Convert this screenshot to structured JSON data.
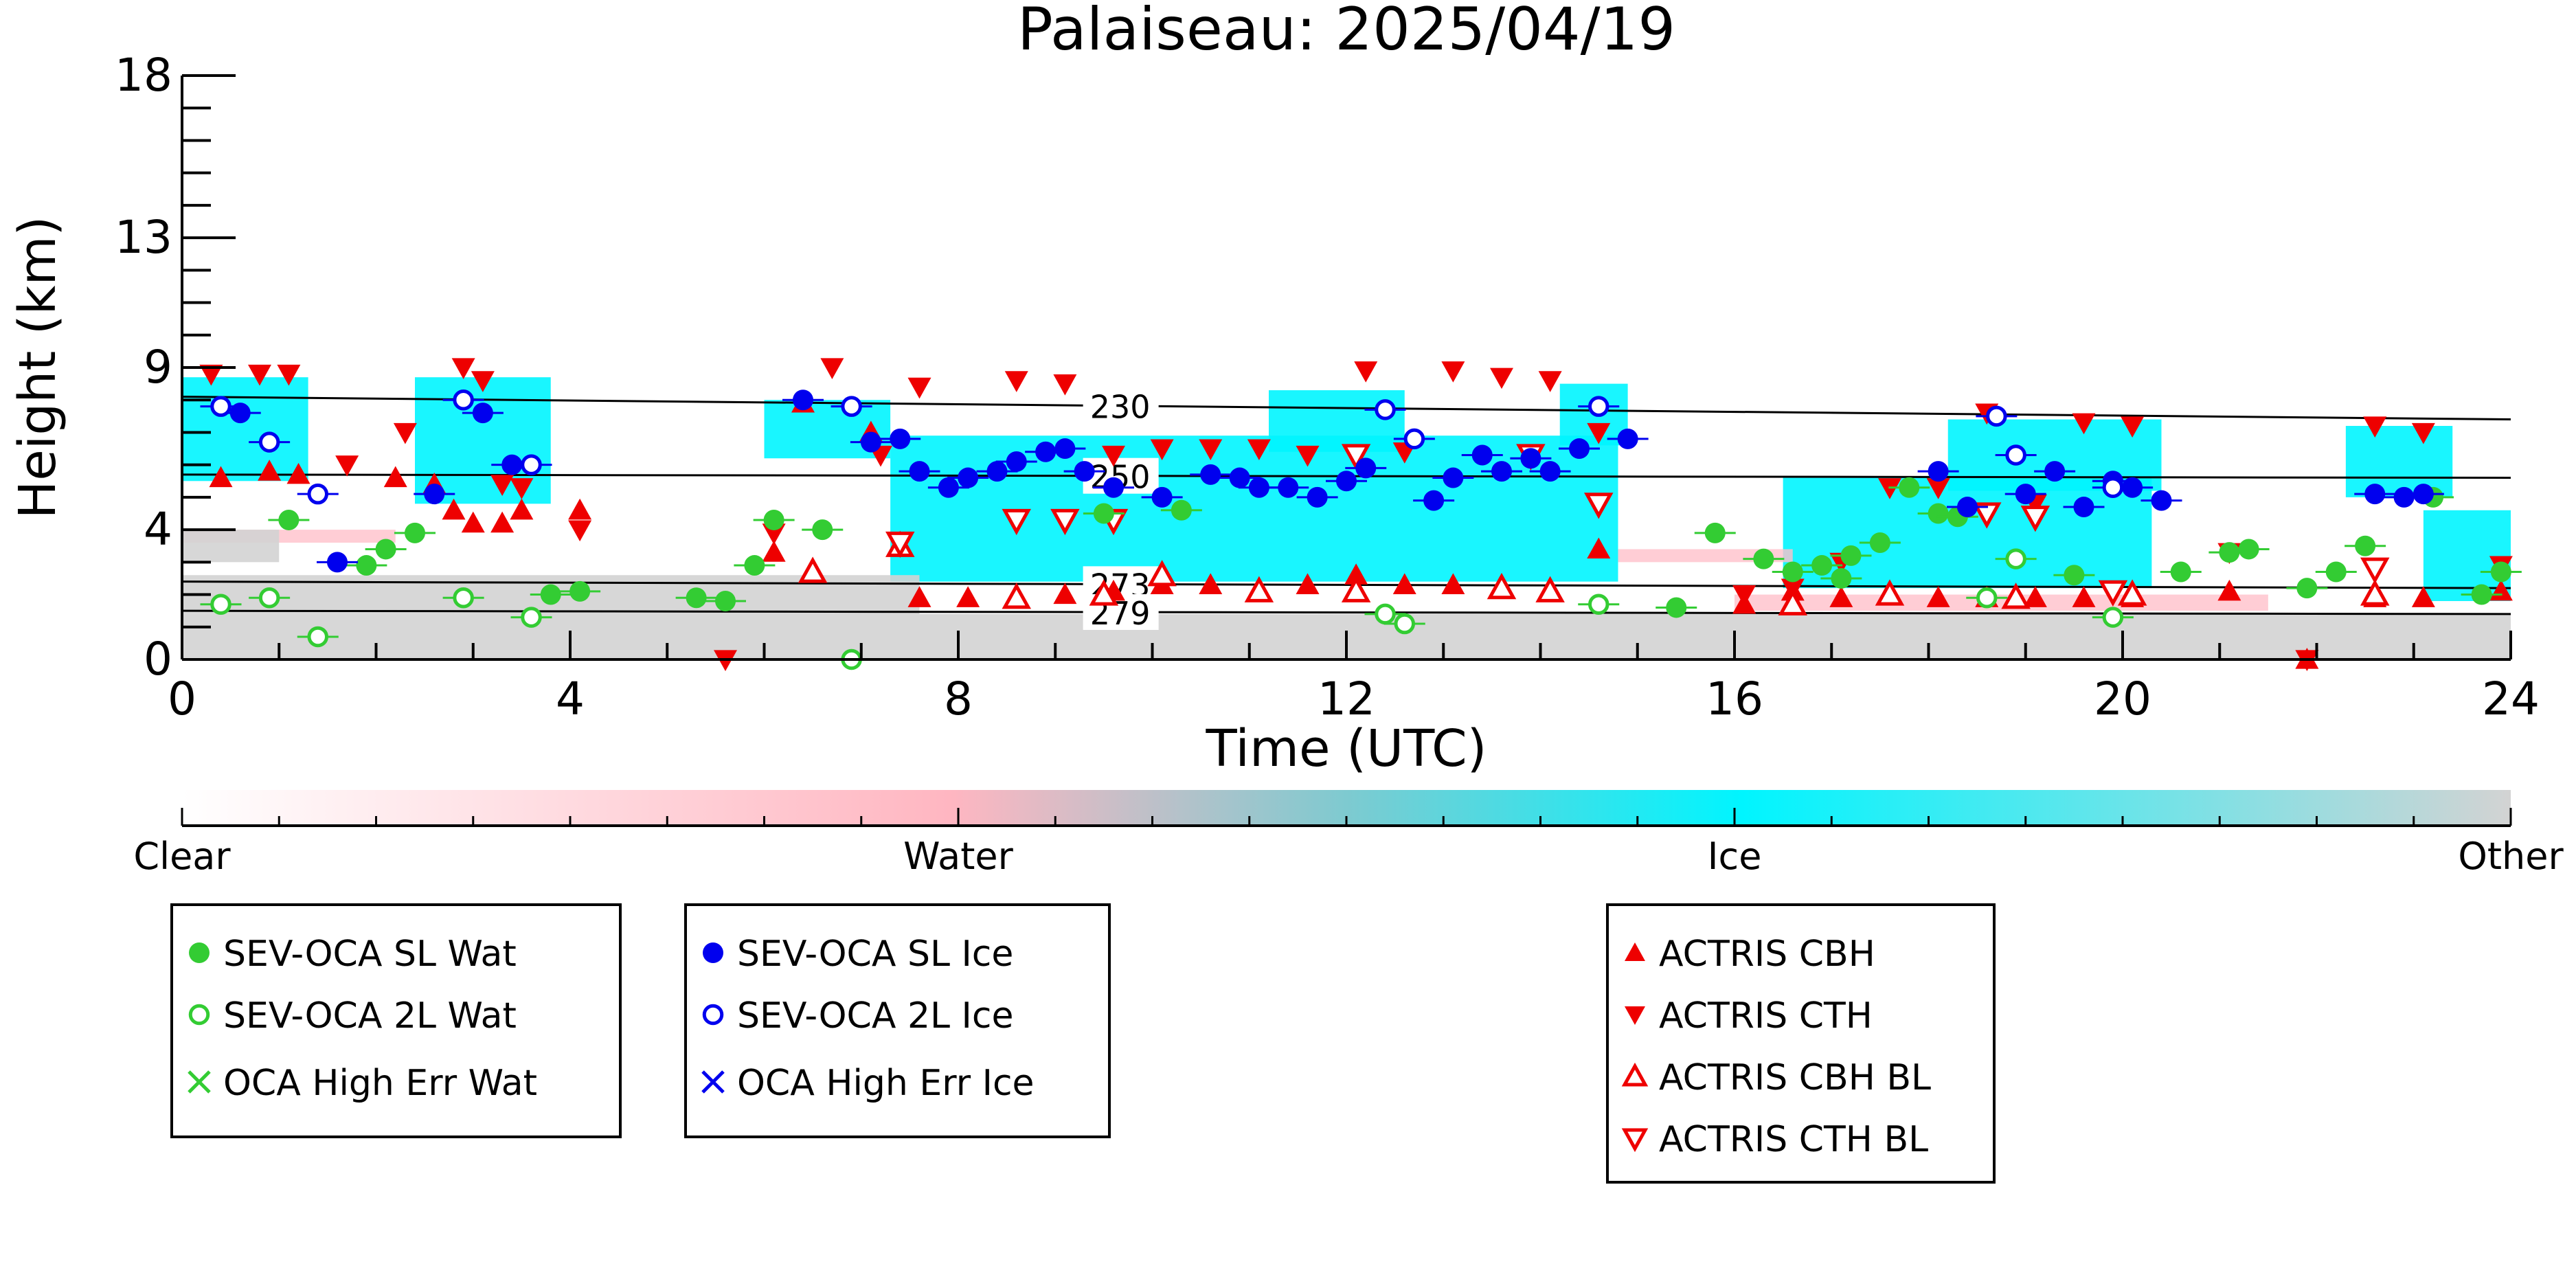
{
  "chart_data": {
    "type": "scatter",
    "title": "Palaiseau: 2025/04/19",
    "xlabel": "Time (UTC)",
    "ylabel": "Height (km)",
    "xlim": [
      0,
      24
    ],
    "ylim": [
      0,
      18
    ],
    "x_ticks": [
      0,
      4,
      8,
      12,
      16,
      20,
      24
    ],
    "y_ticks": [
      0,
      4,
      9,
      13,
      18
    ],
    "grid": false,
    "colorbar": {
      "labels": [
        "Clear",
        "Water",
        "Ice",
        "Other"
      ],
      "colors": [
        "#ffffff",
        "#ffb6c1",
        "#00f5ff",
        "#d3d3d3"
      ]
    },
    "isotherms": [
      {
        "label": "230",
        "x": [
          0,
          24
        ],
        "y": [
          8.1,
          7.4
        ]
      },
      {
        "label": "250",
        "x": [
          0,
          24
        ],
        "y": [
          5.7,
          5.6
        ]
      },
      {
        "label": "273",
        "x": [
          0,
          24
        ],
        "y": [
          2.4,
          2.2
        ]
      },
      {
        "label": "279",
        "x": [
          0,
          24
        ],
        "y": [
          1.5,
          1.4
        ]
      }
    ],
    "series": [
      {
        "name": "SEV-OCA SL Wat",
        "color": "#33cc33",
        "marker": "circle-filled",
        "x": [
          1.1,
          1.9,
          2.1,
          2.4,
          3.8,
          4.1,
          5.3,
          5.6,
          5.9,
          6.1,
          6.6,
          9.5,
          10.3,
          15.4,
          15.8,
          16.3,
          16.6,
          16.9,
          17.1,
          17.2,
          17.5,
          17.8,
          18.1,
          18.3,
          19.5,
          20.6,
          21.1,
          21.3,
          21.9,
          22.2,
          22.5,
          23.2,
          23.7,
          23.9
        ],
        "y": [
          4.3,
          2.9,
          3.4,
          3.9,
          2.0,
          2.1,
          1.9,
          1.8,
          2.9,
          4.3,
          4.0,
          4.5,
          4.6,
          1.6,
          3.9,
          3.1,
          2.7,
          2.9,
          2.5,
          3.2,
          3.6,
          5.3,
          4.5,
          4.4,
          2.6,
          2.7,
          3.3,
          3.4,
          2.2,
          2.7,
          3.5,
          5.0,
          2.0,
          2.7
        ]
      },
      {
        "name": "SEV-OCA 2L Wat",
        "color": "#33cc33",
        "marker": "circle-open",
        "x": [
          0.4,
          0.9,
          1.4,
          2.9,
          3.6,
          6.9,
          12.4,
          12.6,
          14.6,
          18.6,
          18.9,
          19.9
        ],
        "y": [
          1.7,
          1.9,
          0.7,
          1.9,
          1.3,
          0.0,
          1.4,
          1.1,
          1.7,
          1.9,
          3.1,
          1.3
        ]
      },
      {
        "name": "OCA High Err Wat",
        "color": "#33cc33",
        "marker": "x",
        "x": [],
        "y": []
      },
      {
        "name": "SEV-OCA SL Ice",
        "color": "#0000ee",
        "marker": "circle-filled",
        "x": [
          0.6,
          1.6,
          2.6,
          3.1,
          3.4,
          6.4,
          7.1,
          7.4,
          7.6,
          7.9,
          8.1,
          8.4,
          8.6,
          8.9,
          9.1,
          9.3,
          9.6,
          10.1,
          10.6,
          10.9,
          11.1,
          11.4,
          11.7,
          12.0,
          12.2,
          12.9,
          13.1,
          13.4,
          13.6,
          13.9,
          14.1,
          14.4,
          14.9,
          18.1,
          18.4,
          19.0,
          19.3,
          19.6,
          19.9,
          20.1,
          20.4,
          22.6,
          22.9,
          23.1
        ],
        "y": [
          7.6,
          3.0,
          5.1,
          7.6,
          6.0,
          8.0,
          6.7,
          6.8,
          5.8,
          5.3,
          5.6,
          5.8,
          6.1,
          6.4,
          6.5,
          5.8,
          5.3,
          5.0,
          5.7,
          5.6,
          5.3,
          5.3,
          5.0,
          5.5,
          5.9,
          4.9,
          5.6,
          6.3,
          5.8,
          6.2,
          5.8,
          6.5,
          6.8,
          5.8,
          4.7,
          5.1,
          5.8,
          4.7,
          5.5,
          5.3,
          4.9,
          5.1,
          5.0,
          5.1
        ]
      },
      {
        "name": "SEV-OCA 2L Ice",
        "color": "#0000ee",
        "marker": "circle-open",
        "x": [
          0.4,
          0.9,
          1.4,
          2.9,
          3.6,
          6.9,
          12.4,
          12.7,
          14.6,
          18.7,
          18.9,
          19.9
        ],
        "y": [
          7.8,
          6.7,
          5.1,
          8.0,
          6.0,
          7.8,
          7.7,
          6.8,
          7.8,
          7.5,
          6.3,
          5.3
        ]
      },
      {
        "name": "OCA High Err Ice",
        "color": "#0000ee",
        "marker": "x",
        "x": [],
        "y": []
      },
      {
        "name": "ACTRIS CBH",
        "color": "#ee0000",
        "marker": "triangle-up-filled",
        "x": [
          0.4,
          0.9,
          1.2,
          2.2,
          2.6,
          2.8,
          3.0,
          3.3,
          3.5,
          4.1,
          6.1,
          6.4,
          7.1,
          7.6,
          8.1,
          8.6,
          9.1,
          9.6,
          10.1,
          10.6,
          11.1,
          11.6,
          12.1,
          12.6,
          13.1,
          13.6,
          14.1,
          14.6,
          16.1,
          16.6,
          17.1,
          17.6,
          18.1,
          18.6,
          19.1,
          19.6,
          20.1,
          21.1,
          21.9,
          22.6,
          23.1,
          23.9
        ],
        "y": [
          5.6,
          5.8,
          5.7,
          5.6,
          5.4,
          4.6,
          4.2,
          4.2,
          4.6,
          4.6,
          3.3,
          7.9,
          7.0,
          1.9,
          1.9,
          1.9,
          2.0,
          2.1,
          2.3,
          2.3,
          2.1,
          2.3,
          2.6,
          2.3,
          2.3,
          2.3,
          2.1,
          3.4,
          1.7,
          2.1,
          1.9,
          2.1,
          1.9,
          1.9,
          1.9,
          1.9,
          1.9,
          2.1,
          0.0,
          1.9,
          1.9,
          2.1
        ]
      },
      {
        "name": "ACTRIS CTH",
        "color": "#ee0000",
        "marker": "triangle-down-filled",
        "x": [
          0.3,
          0.8,
          1.1,
          1.7,
          2.3,
          2.9,
          3.1,
          3.3,
          3.5,
          4.1,
          5.6,
          6.1,
          6.7,
          7.2,
          7.6,
          8.6,
          9.1,
          9.6,
          10.1,
          10.6,
          11.1,
          11.6,
          12.2,
          12.6,
          13.1,
          13.6,
          14.1,
          14.6,
          16.1,
          16.6,
          17.1,
          17.6,
          18.1,
          18.6,
          19.1,
          19.6,
          20.1,
          21.1,
          21.9,
          22.6,
          23.1,
          23.9
        ],
        "y": [
          8.8,
          8.8,
          8.8,
          6.0,
          7.0,
          9.0,
          8.6,
          5.4,
          5.3,
          4.0,
          0.0,
          3.9,
          9.0,
          6.3,
          8.4,
          8.6,
          8.5,
          6.3,
          6.5,
          6.5,
          6.5,
          6.3,
          8.9,
          6.4,
          8.9,
          8.7,
          8.6,
          7.0,
          2.0,
          2.2,
          3.0,
          5.3,
          5.3,
          7.6,
          4.8,
          7.3,
          7.2,
          3.3,
          0.0,
          7.2,
          7.0,
          2.9
        ]
      },
      {
        "name": "ACTRIS CBH BL",
        "color": "#ee0000",
        "marker": "triangle-up-open",
        "x": [
          6.5,
          7.4,
          8.6,
          9.5,
          10.1,
          11.1,
          12.1,
          13.6,
          14.1,
          16.6,
          17.6,
          18.9,
          20.1,
          22.6
        ],
        "y": [
          2.7,
          3.5,
          1.9,
          2.0,
          2.6,
          2.1,
          2.1,
          2.2,
          2.1,
          1.7,
          2.0,
          1.9,
          2.0,
          2.0
        ]
      },
      {
        "name": "ACTRIS CTH BL",
        "color": "#ee0000",
        "marker": "triangle-down-open",
        "x": [
          7.4,
          8.6,
          9.1,
          9.6,
          12.1,
          13.9,
          14.6,
          18.6,
          19.1,
          19.9,
          22.6
        ],
        "y": [
          3.6,
          4.3,
          4.3,
          4.3,
          6.3,
          6.3,
          4.8,
          4.5,
          4.4,
          2.1,
          2.8
        ]
      }
    ],
    "layers": [
      {
        "class": "Ice",
        "x": [
          0,
          1.3
        ],
        "y": [
          5.5,
          8.7
        ]
      },
      {
        "class": "Ice",
        "x": [
          2.4,
          3.8
        ],
        "y": [
          4.8,
          8.7
        ]
      },
      {
        "class": "Ice",
        "x": [
          6.0,
          7.3
        ],
        "y": [
          6.2,
          8.0
        ]
      },
      {
        "class": "Ice",
        "x": [
          7.3,
          14.8
        ],
        "y": [
          2.4,
          6.9
        ]
      },
      {
        "class": "Ice",
        "x": [
          11.2,
          12.6
        ],
        "y": [
          6.4,
          8.3
        ]
      },
      {
        "class": "Ice",
        "x": [
          14.2,
          14.9
        ],
        "y": [
          6.6,
          8.5
        ]
      },
      {
        "class": "Ice",
        "x": [
          16.5,
          20.3
        ],
        "y": [
          2.2,
          5.6
        ]
      },
      {
        "class": "Ice",
        "x": [
          18.2,
          20.4
        ],
        "y": [
          5.2,
          7.4
        ]
      },
      {
        "class": "Ice",
        "x": [
          22.3,
          23.4
        ],
        "y": [
          5.0,
          7.2
        ]
      },
      {
        "class": "Ice",
        "x": [
          23.1,
          24.0
        ],
        "y": [
          1.8,
          4.6
        ]
      },
      {
        "class": "Water",
        "x": [
          0,
          2.2
        ],
        "y": [
          3.6,
          4.0
        ]
      },
      {
        "class": "Water",
        "x": [
          14.8,
          16.6
        ],
        "y": [
          3.0,
          3.4
        ]
      },
      {
        "class": "Water",
        "x": [
          16.0,
          21.5
        ],
        "y": [
          1.5,
          2.0
        ]
      },
      {
        "class": "Other",
        "x": [
          0,
          24
        ],
        "y": [
          0,
          1.4
        ]
      },
      {
        "class": "Other",
        "x": [
          0,
          7.6
        ],
        "y": [
          1.4,
          2.6
        ]
      },
      {
        "class": "Other",
        "x": [
          0,
          1.0
        ],
        "y": [
          3.0,
          4.0
        ]
      }
    ]
  },
  "legends": [
    {
      "entries": [
        {
          "label": "SEV-OCA SL Wat",
          "color": "#33cc33",
          "marker": "circle-filled"
        },
        {
          "label": "SEV-OCA 2L Wat",
          "color": "#33cc33",
          "marker": "circle-open"
        },
        {
          "label": "OCA High Err Wat",
          "color": "#33cc33",
          "marker": "x"
        }
      ]
    },
    {
      "entries": [
        {
          "label": "SEV-OCA SL Ice",
          "color": "#0000ee",
          "marker": "circle-filled"
        },
        {
          "label": "SEV-OCA 2L Ice",
          "color": "#0000ee",
          "marker": "circle-open"
        },
        {
          "label": "OCA High Err Ice",
          "color": "#0000ee",
          "marker": "x"
        }
      ]
    },
    {
      "entries": [
        {
          "label": "ACTRIS CBH",
          "color": "#ee0000",
          "marker": "triangle-up-filled"
        },
        {
          "label": "ACTRIS CTH",
          "color": "#ee0000",
          "marker": "triangle-down-filled"
        },
        {
          "label": "ACTRIS CBH BL",
          "color": "#ee0000",
          "marker": "triangle-up-open"
        },
        {
          "label": "ACTRIS CTH BL",
          "color": "#ee0000",
          "marker": "triangle-down-open"
        }
      ]
    }
  ]
}
